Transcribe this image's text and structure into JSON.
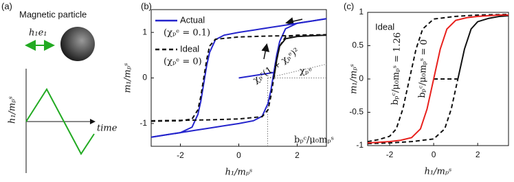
{
  "panel_a": {
    "label": "(a)",
    "particle": "Magnetic particle",
    "field": "h₁e₁",
    "ylabel": "h₁/mₚˢ",
    "xlabel": "time"
  },
  "chart_data": [
    {
      "type": "line",
      "label": "(b)",
      "xlabel": "h₁/mₚˢ",
      "ylabel": "m₁/mₚˢ",
      "xlim": [
        -3,
        3
      ],
      "ylim": [
        -1.5,
        1.5
      ],
      "xticks": [
        -2,
        0,
        2
      ],
      "yticks": [
        -1,
        0,
        1
      ],
      "annotations": [
        "χₚʳ(1 + χₚᵉ)²",
        "χₚᵉ",
        "bₚᶜ/μ₀mₚˢ"
      ],
      "series": [
        {
          "name": "Actual",
          "note": "(χₚᵉ = 0.1)",
          "color": "#2424cc",
          "dash": false,
          "x": [
            -3,
            -2.5,
            -2,
            -1.6,
            -1.4,
            -1.3,
            -1.2,
            -1.1,
            -1.0,
            -0.8,
            -0.5,
            0,
            0.5,
            1,
            1.5,
            2,
            2.5,
            3
          ],
          "values": [
            -1.3,
            -1.25,
            -1.2,
            -1.08,
            -0.8,
            -0.51,
            -0.12,
            0.27,
            0.56,
            0.84,
            0.94,
            1.0,
            1.05,
            1.1,
            1.15,
            1.2,
            1.25,
            1.3
          ]
        },
        {
          "color": "#2424cc",
          "dash": false,
          "x": [
            -3,
            -2.5,
            -2,
            -1.5,
            -1,
            -0.5,
            0,
            0.5,
            0.8,
            1.0,
            1.1,
            1.2,
            1.3,
            1.4,
            1.6,
            2,
            2.5,
            3
          ],
          "values": [
            -1.3,
            -1.25,
            -1.2,
            -1.15,
            -1.1,
            -1.05,
            -1.0,
            -0.94,
            -0.84,
            -0.56,
            -0.27,
            0.12,
            0.51,
            0.8,
            1.08,
            1.2,
            1.25,
            1.3
          ]
        },
        {
          "color": "#2424cc",
          "dash": false,
          "x": [
            0,
            1,
            1.2
          ],
          "values": [
            0,
            0.1,
            0.12
          ]
        },
        {
          "name": "Ideal",
          "note": "(χₚᵉ = 0)",
          "color": "#111111",
          "dash": true,
          "x": [
            -3,
            -2,
            -1.6,
            -1.4,
            -1.3,
            -1.2,
            -1.1,
            -1.0,
            -0.8,
            0,
            1,
            2,
            3
          ],
          "values": [
            -0.95,
            -0.94,
            -0.9,
            -0.7,
            -0.4,
            0,
            0.4,
            0.7,
            0.85,
            0.9,
            0.92,
            0.93,
            0.94
          ]
        },
        {
          "color": "#111111",
          "dash": true,
          "x": [
            -3,
            -2,
            -1,
            0,
            0.8,
            1.0,
            1.1,
            1.2,
            1.3,
            1.4,
            1.6,
            2,
            3
          ],
          "values": [
            -0.94,
            -0.93,
            -0.92,
            -0.9,
            -0.85,
            -0.7,
            -0.4,
            0,
            0.4,
            0.7,
            0.9,
            0.94,
            0.95
          ]
        },
        {
          "color": "#111111",
          "dash": false,
          "x": [
            1.2,
            1.3,
            1.4,
            1.6,
            2,
            3
          ],
          "values": [
            0,
            0.4,
            0.7,
            0.86,
            0.91,
            0.94
          ]
        }
      ]
    },
    {
      "type": "line",
      "label": "(c)",
      "xlabel": "h₁/mₚˢ",
      "ylabel": "m₁/mₚˢ",
      "xlim": [
        -3,
        3.4
      ],
      "ylim": [
        -1,
        1
      ],
      "xticks": [
        -2,
        0,
        2
      ],
      "yticks": [
        -1,
        -0.5,
        0,
        0.5,
        1
      ],
      "annotations": [
        "Ideal",
        "bₚᶜ/μ₀mₚˢ = 1.26",
        "bₚᶜ/μ₀mₚˢ = 0"
      ],
      "series": [
        {
          "color": "#111111",
          "dash": true,
          "x": [
            -3,
            -2.5,
            -2,
            -1.7,
            -1.4,
            -1.1,
            -0.8,
            -0.5,
            0,
            1,
            2,
            3.4
          ],
          "values": [
            -0.94,
            -0.91,
            -0.86,
            -0.75,
            -0.45,
            0,
            0.45,
            0.75,
            0.9,
            0.94,
            0.96,
            0.97
          ]
        },
        {
          "color": "#111111",
          "dash": true,
          "x": [
            -3,
            -2,
            -1,
            0,
            0.5,
            0.8,
            1.1
          ],
          "values": [
            -0.97,
            -0.96,
            -0.94,
            -0.9,
            -0.75,
            -0.45,
            0
          ]
        },
        {
          "color": "#111111",
          "dash": true,
          "x": [
            0,
            1.1
          ],
          "values": [
            0,
            0
          ]
        },
        {
          "color": "#111111",
          "dash": false,
          "x": [
            1.1,
            1.4,
            1.7,
            2,
            2.5,
            3,
            3.4
          ],
          "values": [
            0,
            0.45,
            0.75,
            0.86,
            0.91,
            0.94,
            0.95
          ]
        },
        {
          "color": "#e8201c",
          "dash": false,
          "x": [
            -3,
            -2,
            -1.5,
            -1,
            -0.6,
            -0.3,
            0,
            0.3,
            0.6,
            1,
            1.5,
            2,
            3,
            3.4
          ],
          "values": [
            -0.96,
            -0.94,
            -0.92,
            -0.88,
            -0.75,
            -0.45,
            0,
            0.45,
            0.75,
            0.88,
            0.92,
            0.94,
            0.96,
            0.96
          ]
        }
      ]
    }
  ]
}
